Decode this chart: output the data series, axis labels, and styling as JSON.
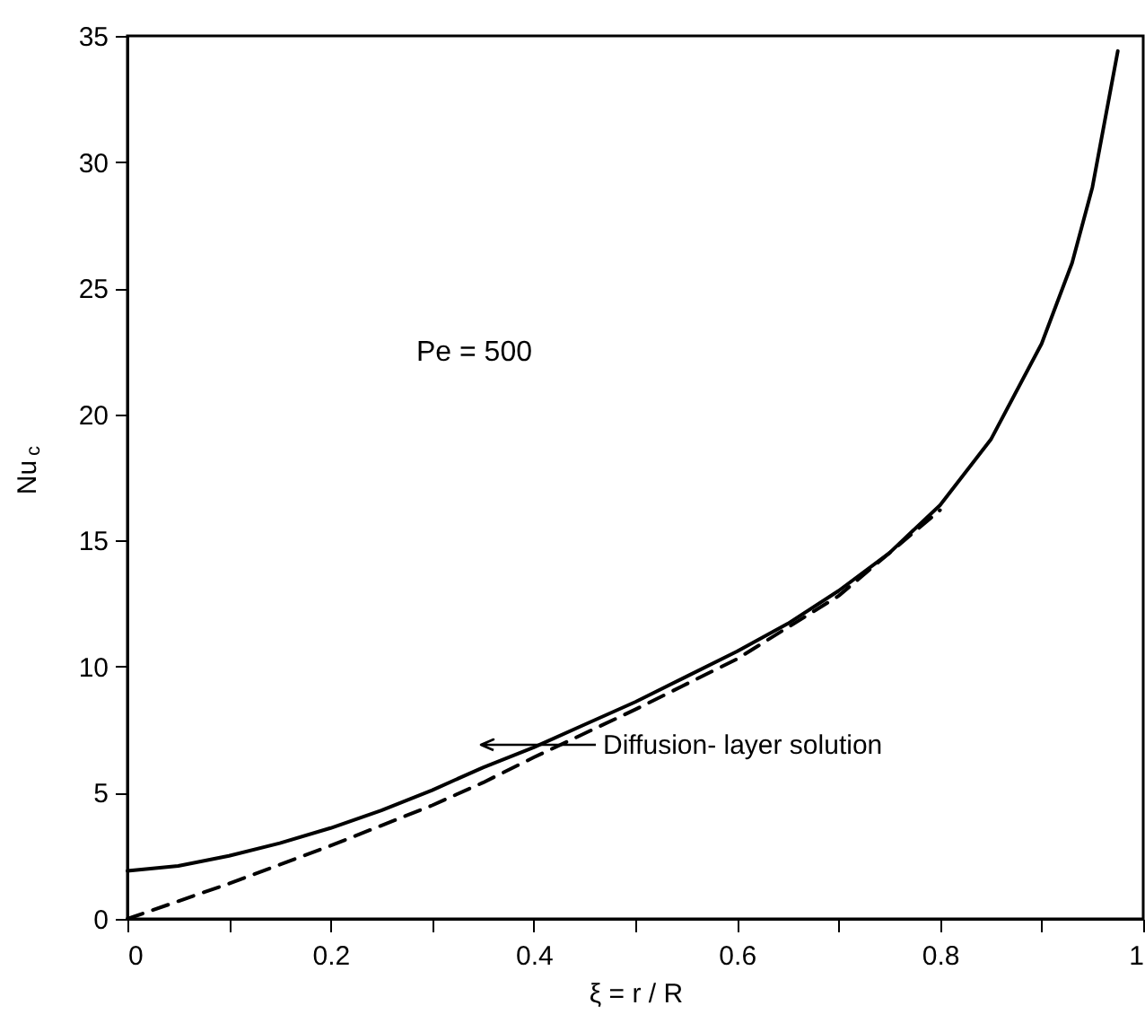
{
  "chart_data": {
    "type": "line",
    "xlabel": "ξ = r / R",
    "ylabel": "Nu$_{c}$",
    "xlim": [
      0,
      1
    ],
    "ylim": [
      0,
      35
    ],
    "xticks": [
      0,
      {
        "value": 0.1,
        "label": null
      },
      0.2,
      {
        "value": 0.3,
        "label": null
      },
      0.4,
      {
        "value": 0.5,
        "label": null
      },
      0.6,
      {
        "value": 0.7,
        "label": null
      },
      0.8,
      {
        "value": 0.9,
        "label": null
      },
      1
    ],
    "yticks": [
      0,
      5,
      10,
      15,
      20,
      25,
      30,
      35
    ],
    "grid": false,
    "series": [
      {
        "color": "#000000",
        "line_style": "solid",
        "x": [
          0,
          0.05,
          0.1,
          0.15,
          0.2,
          0.25,
          0.3,
          0.35,
          0.4,
          0.45,
          0.5,
          0.55,
          0.6,
          0.65,
          0.7,
          0.75,
          0.8,
          0.85,
          0.9,
          0.93,
          0.95,
          0.975
        ],
        "values": [
          1.9,
          2.1,
          2.5,
          3.0,
          3.6,
          4.3,
          5.1,
          6.0,
          6.8,
          7.7,
          8.6,
          9.6,
          10.6,
          11.7,
          13.0,
          14.5,
          16.4,
          19.0,
          22.8,
          26.0,
          29.0,
          34.4
        ]
      },
      {
        "color": "#000000",
        "line_style": "dashed",
        "x": [
          0,
          0.1,
          0.2,
          0.3,
          0.35,
          0.4,
          0.5,
          0.6,
          0.7,
          0.8
        ],
        "values": [
          0,
          1.4,
          2.9,
          4.5,
          5.4,
          6.4,
          8.3,
          10.3,
          12.8,
          16.2
        ]
      }
    ],
    "annotations": [
      "Pe = 500",
      "Diffusion- layer solution"
    ]
  }
}
